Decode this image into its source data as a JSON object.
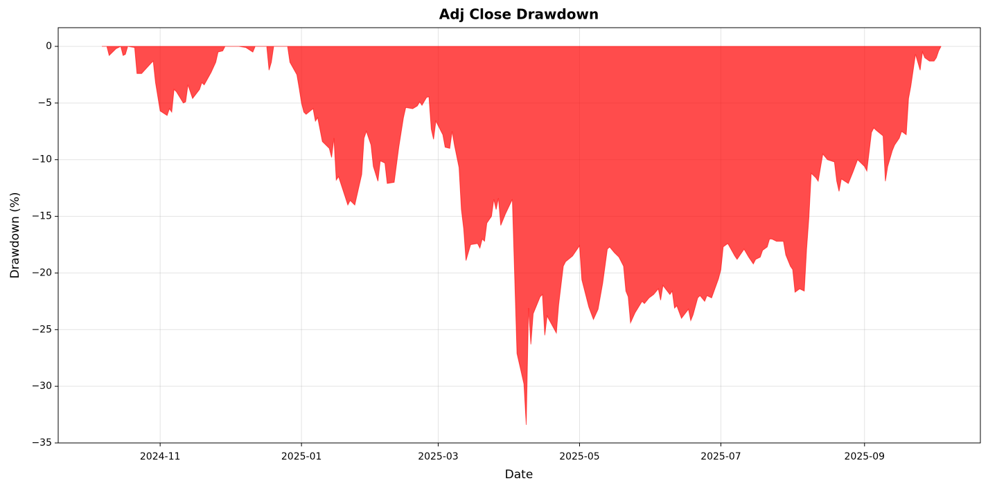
{
  "chart_data": {
    "type": "area",
    "title": "Adj Close Drawdown",
    "xlabel": "Date",
    "ylabel": "Drawdown (%)",
    "color": "#ff0000",
    "grid": true,
    "xlim": [
      "2024-09-18",
      "2025-10-21"
    ],
    "xticks": [
      {
        "value": "2024-11-01",
        "label": "2024-11"
      },
      {
        "value": "2025-01-01",
        "label": "2025-01"
      },
      {
        "value": "2025-03-01",
        "label": "2025-03"
      },
      {
        "value": "2025-05-01",
        "label": "2025-05"
      },
      {
        "value": "2025-07-01",
        "label": "2025-07"
      },
      {
        "value": "2025-09-01",
        "label": "2025-09"
      }
    ],
    "ylim": [
      -35,
      1.65
    ],
    "yticks": [
      0,
      {
        "value": -5,
        "label": "−5"
      },
      {
        "value": -10,
        "label": "−10"
      },
      {
        "value": -15,
        "label": "−15"
      },
      {
        "value": -20,
        "label": "−20"
      },
      {
        "value": -25,
        "label": "−25"
      },
      {
        "value": -30,
        "label": "−30"
      },
      {
        "value": -35,
        "label": "−35"
      }
    ],
    "x": [
      "2024-10-07",
      "2024-10-09",
      "2024-10-10",
      "2024-10-13",
      "2024-10-15",
      "2024-10-16",
      "2024-10-17",
      "2024-10-18",
      "2024-10-21",
      "2024-10-22",
      "2024-10-24",
      "2024-10-28",
      "2024-10-29",
      "2024-10-30",
      "2024-11-01",
      "2024-11-04",
      "2024-11-05",
      "2024-11-06",
      "2024-11-07",
      "2024-11-08",
      "2024-11-11",
      "2024-11-12",
      "2024-11-13",
      "2024-11-15",
      "2024-11-18",
      "2024-11-19",
      "2024-11-20",
      "2024-11-23",
      "2024-11-25",
      "2024-11-26",
      "2024-11-28",
      "2024-11-29",
      "2024-12-05",
      "2024-12-08",
      "2024-12-11",
      "2024-12-12",
      "2024-12-17",
      "2024-12-18",
      "2024-12-19",
      "2024-12-20",
      "2024-12-26",
      "2024-12-27",
      "2024-12-30",
      "2024-12-31",
      "2025-01-01",
      "2025-01-02",
      "2025-01-03",
      "2025-01-06",
      "2025-01-07",
      "2025-01-08",
      "2025-01-10",
      "2025-01-13",
      "2025-01-14",
      "2025-01-15",
      "2025-01-16",
      "2025-01-17",
      "2025-01-21",
      "2025-01-22",
      "2025-01-24",
      "2025-01-27",
      "2025-01-28",
      "2025-01-29",
      "2025-01-31",
      "2025-02-01",
      "2025-02-03",
      "2025-02-04",
      "2025-02-06",
      "2025-02-07",
      "2025-02-10",
      "2025-02-12",
      "2025-02-14",
      "2025-02-15",
      "2025-02-18",
      "2025-02-20",
      "2025-02-21",
      "2025-02-22",
      "2025-02-24",
      "2025-02-25",
      "2025-02-26",
      "2025-02-27",
      "2025-02-28",
      "2025-03-03",
      "2025-03-04",
      "2025-03-06",
      "2025-03-07",
      "2025-03-08",
      "2025-03-10",
      "2025-03-11",
      "2025-03-12",
      "2025-03-13",
      "2025-03-15",
      "2025-03-18",
      "2025-03-19",
      "2025-03-20",
      "2025-03-21",
      "2025-03-22",
      "2025-03-24",
      "2025-03-25",
      "2025-03-26",
      "2025-03-27",
      "2025-03-28",
      "2025-03-30",
      "2025-04-02",
      "2025-04-04",
      "2025-04-07",
      "2025-04-08",
      "2025-04-09",
      "2025-04-10",
      "2025-04-11",
      "2025-04-14",
      "2025-04-15",
      "2025-04-16",
      "2025-04-17",
      "2025-04-21",
      "2025-04-22",
      "2025-04-24",
      "2025-04-25",
      "2025-04-28",
      "2025-05-01",
      "2025-05-02",
      "2025-05-05",
      "2025-05-07",
      "2025-05-09",
      "2025-05-11",
      "2025-05-13",
      "2025-05-14",
      "2025-05-16",
      "2025-05-18",
      "2025-05-20",
      "2025-05-21",
      "2025-05-22",
      "2025-05-23",
      "2025-05-25",
      "2025-05-28",
      "2025-05-29",
      "2025-05-31",
      "2025-06-02",
      "2025-06-04",
      "2025-06-05",
      "2025-06-06",
      "2025-06-09",
      "2025-06-10",
      "2025-06-11",
      "2025-06-12",
      "2025-06-14",
      "2025-06-17",
      "2025-06-18",
      "2025-06-19",
      "2025-06-21",
      "2025-06-22",
      "2025-06-24",
      "2025-06-25",
      "2025-06-27",
      "2025-06-30",
      "2025-07-01",
      "2025-07-02",
      "2025-07-04",
      "2025-07-07",
      "2025-07-08",
      "2025-07-11",
      "2025-07-13",
      "2025-07-15",
      "2025-07-16",
      "2025-07-18",
      "2025-07-19",
      "2025-07-21",
      "2025-07-22",
      "2025-07-23",
      "2025-07-25",
      "2025-07-28",
      "2025-07-29",
      "2025-07-31",
      "2025-08-01",
      "2025-08-02",
      "2025-08-04",
      "2025-08-06",
      "2025-08-07",
      "2025-08-08",
      "2025-08-09",
      "2025-08-11",
      "2025-08-12",
      "2025-08-14",
      "2025-08-16",
      "2025-08-19",
      "2025-08-20",
      "2025-08-21",
      "2025-08-22",
      "2025-08-25",
      "2025-08-27",
      "2025-08-29",
      "2025-09-01",
      "2025-09-02",
      "2025-09-04",
      "2025-09-05",
      "2025-09-06",
      "2025-09-09",
      "2025-09-10",
      "2025-09-11",
      "2025-09-13",
      "2025-09-14",
      "2025-09-16",
      "2025-09-17",
      "2025-09-19",
      "2025-09-20",
      "2025-09-21",
      "2025-09-23",
      "2025-09-25",
      "2025-09-26",
      "2025-09-27",
      "2025-09-29",
      "2025-10-01",
      "2025-10-02",
      "2025-10-03",
      "2025-10-04"
    ],
    "values": [
      0,
      0,
      -0.8,
      -0.2,
      0,
      -0.8,
      -0.7,
      0,
      -0.1,
      -2.4,
      -2.4,
      -1.5,
      -1.3,
      -3.2,
      -5.7,
      -6.1,
      -5.5,
      -5.8,
      -3.8,
      -4.0,
      -5.0,
      -4.9,
      -3.4,
      -4.6,
      -3.8,
      -3.2,
      -3.4,
      -2.3,
      -1.4,
      -0.5,
      -0.4,
      0,
      0,
      -0.1,
      -0.5,
      0,
      0,
      -2.1,
      -1.4,
      0,
      0,
      -1.4,
      -2.5,
      -3.7,
      -5.0,
      -5.8,
      -6.0,
      -5.5,
      -6.6,
      -6.3,
      -8.4,
      -9.0,
      -9.8,
      -8.1,
      -11.8,
      -11.5,
      -14.0,
      -13.6,
      -14.0,
      -11.3,
      -8.1,
      -7.5,
      -8.7,
      -10.6,
      -11.9,
      -10.1,
      -10.3,
      -12.1,
      -12.0,
      -8.9,
      -6.3,
      -5.4,
      -5.5,
      -5.25,
      -4.9,
      -5.2,
      -4.5,
      -4.45,
      -7.3,
      -8.2,
      -6.6,
      -7.8,
      -8.9,
      -9.0,
      -7.5,
      -8.7,
      -10.7,
      -14.4,
      -16.1,
      -18.9,
      -17.5,
      -17.4,
      -17.8,
      -17.0,
      -17.2,
      -15.6,
      -15.0,
      -13.5,
      -14.4,
      -13.4,
      -15.8,
      -14.8,
      -13.5,
      -27.1,
      -29.8,
      -33.4,
      -23.1,
      -26.3,
      -23.6,
      -22.1,
      -21.9,
      -25.5,
      -23.8,
      -25.3,
      -22.8,
      -19.4,
      -19.0,
      -18.5,
      -17.6,
      -20.6,
      -23.0,
      -24.1,
      -23.2,
      -20.9,
      -17.9,
      -17.7,
      -18.2,
      -18.6,
      -19.4,
      -21.6,
      -22.1,
      -24.4,
      -23.5,
      -22.5,
      -22.7,
      -22.2,
      -21.9,
      -21.4,
      -22.4,
      -21.1,
      -21.9,
      -21.6,
      -23.1,
      -22.9,
      -24.0,
      -23.2,
      -24.2,
      -23.7,
      -22.2,
      -22.0,
      -22.5,
      -22.0,
      -22.2,
      -20.5,
      -19.7,
      -17.7,
      -17.4,
      -18.5,
      -18.8,
      -17.9,
      -18.6,
      -19.2,
      -18.8,
      -18.6,
      -18.0,
      -17.7,
      -17.0,
      -17.0,
      -17.2,
      -17.2,
      -18.4,
      -19.4,
      -19.7,
      -21.7,
      -21.4,
      -21.6,
      -17.9,
      -15.1,
      -11.2,
      -11.6,
      -11.9,
      -9.5,
      -10.0,
      -10.2,
      -11.9,
      -12.8,
      -11.7,
      -12.1,
      -11.1,
      -10.0,
      -10.6,
      -11.0,
      -7.6,
      -7.2,
      -7.4,
      -7.9,
      -11.9,
      -10.6,
      -9.2,
      -8.7,
      -8.1,
      -7.5,
      -7.8,
      -4.6,
      -3.5,
      -0.7,
      -2.1,
      -0.5,
      -1.0,
      -1.3,
      -1.3,
      -1.0,
      -0.4,
      0
    ]
  }
}
